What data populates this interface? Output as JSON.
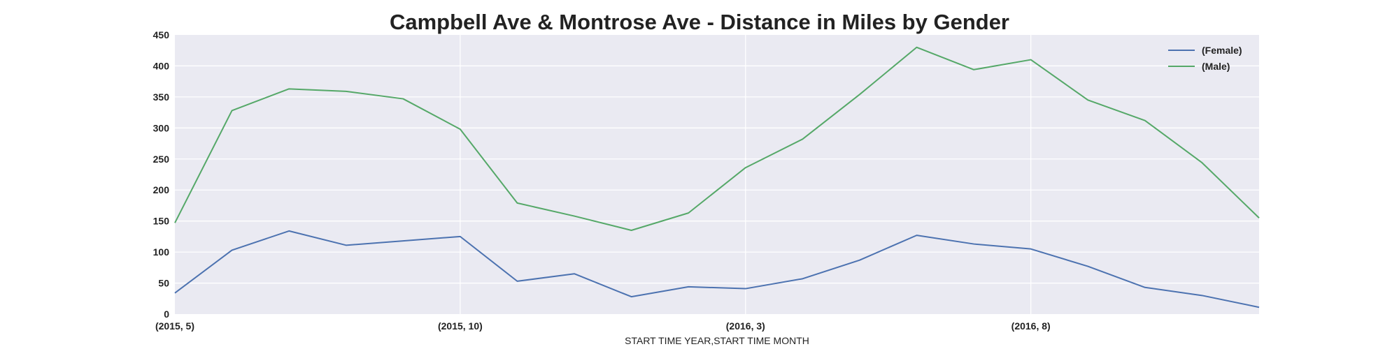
{
  "chart_data": {
    "type": "line",
    "title": "Campbell Ave & Montrose Ave - Distance in Miles by Gender",
    "xlabel": "START TIME YEAR,START TIME MONTH",
    "ylabel": "",
    "x": [
      "(2015, 5)",
      "(2015, 6)",
      "(2015, 7)",
      "(2015, 8)",
      "(2015, 9)",
      "(2015, 10)",
      "(2015, 11)",
      "(2015, 12)",
      "(2016, 1)",
      "(2016, 2)",
      "(2016, 3)",
      "(2016, 4)",
      "(2016, 5)",
      "(2016, 6)",
      "(2016, 7)",
      "(2016, 8)",
      "(2016, 9)",
      "(2016, 10)",
      "(2016, 11)",
      "(2016, 12)"
    ],
    "x_tick_labels": [
      "(2015, 5)",
      "(2015, 10)",
      "(2016, 3)",
      "(2016, 8)"
    ],
    "ylim": [
      0,
      450
    ],
    "y_ticks": [
      0,
      50,
      100,
      150,
      200,
      250,
      300,
      350,
      400,
      450
    ],
    "grid": true,
    "legend_position": "top-right",
    "background_color": "#eaeaf2",
    "series": [
      {
        "name": "(Female)",
        "color": "#4c72b0",
        "values": [
          34,
          103,
          134,
          111,
          118,
          125,
          53,
          65,
          28,
          44,
          41,
          57,
          87,
          127,
          113,
          105,
          77,
          43,
          30,
          11
        ]
      },
      {
        "name": "(Male)",
        "color": "#55a868",
        "values": [
          147,
          328,
          363,
          359,
          347,
          298,
          179,
          158,
          135,
          163,
          236,
          282,
          354,
          430,
          394,
          410,
          345,
          312,
          244,
          155
        ]
      }
    ]
  }
}
